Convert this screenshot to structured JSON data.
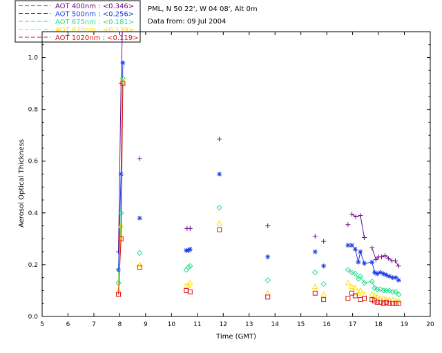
{
  "info": {
    "location": "PML, N 50 22', W 04 08', Alt 0m",
    "date": "Data from: 09 Jul 2004"
  },
  "chart_data": {
    "type": "scatter",
    "xlabel": "Time (GMT)",
    "ylabel": "Aerosol Optical Thickness",
    "xlim": [
      5,
      20
    ],
    "ylim": [
      0,
      1.1
    ],
    "xticks": [
      "5",
      "6",
      "7",
      "8",
      "9",
      "10",
      "11",
      "12",
      "13",
      "14",
      "15",
      "16",
      "17",
      "18",
      "19",
      "20"
    ],
    "yticks": [
      "0.0",
      "0.2",
      "0.4",
      "0.6",
      "0.8",
      "1.0"
    ],
    "legend_position": "top-left-outside",
    "series": [
      {
        "name": "AOT  400nm : <0.346>",
        "color": "#6a0a8a",
        "marker": "plus",
        "points": [
          [
            7.95,
            0.25
          ],
          [
            8.05,
            0.9
          ],
          [
            8.1,
            1.1
          ],
          [
            8.77,
            0.61
          ],
          [
            10.6,
            0.34
          ],
          [
            10.72,
            0.34
          ],
          [
            11.85,
            0.685
          ],
          [
            13.72,
            0.35
          ],
          [
            15.55,
            0.31
          ],
          [
            15.88,
            0.29
          ],
          [
            16.82,
            0.355
          ],
          [
            16.97,
            0.395
          ],
          [
            17.12,
            0.385
          ],
          [
            17.3,
            0.39
          ],
          [
            17.45,
            0.305
          ],
          [
            17.75,
            0.265
          ],
          [
            17.9,
            0.22
          ],
          [
            18.0,
            0.23
          ],
          [
            18.12,
            0.23
          ],
          [
            18.25,
            0.235
          ],
          [
            18.38,
            0.225
          ],
          [
            18.52,
            0.215
          ],
          [
            18.65,
            0.215
          ],
          [
            18.77,
            0.195
          ]
        ],
        "lines": [
          [
            0,
            1
          ],
          [
            1,
            2
          ],
          [
            11,
            12
          ],
          [
            12,
            13
          ],
          [
            13,
            14
          ],
          [
            15,
            16
          ],
          [
            16,
            17
          ],
          [
            17,
            18
          ],
          [
            18,
            19
          ],
          [
            19,
            20
          ],
          [
            20,
            21
          ],
          [
            21,
            22
          ],
          [
            22,
            23
          ]
        ]
      },
      {
        "name": "AOT  500nm : <0.256>",
        "color": "#1a3ce6",
        "marker": "asterisk",
        "points": [
          [
            7.95,
            0.18
          ],
          [
            8.05,
            0.55
          ],
          [
            8.12,
            0.98
          ],
          [
            8.77,
            0.38
          ],
          [
            10.57,
            0.255
          ],
          [
            10.65,
            0.255
          ],
          [
            10.72,
            0.26
          ],
          [
            11.85,
            0.55
          ],
          [
            13.72,
            0.23
          ],
          [
            15.55,
            0.25
          ],
          [
            15.88,
            0.195
          ],
          [
            16.82,
            0.275
          ],
          [
            16.97,
            0.275
          ],
          [
            17.1,
            0.26
          ],
          [
            17.22,
            0.21
          ],
          [
            17.3,
            0.25
          ],
          [
            17.45,
            0.205
          ],
          [
            17.75,
            0.21
          ],
          [
            17.85,
            0.17
          ],
          [
            17.95,
            0.165
          ],
          [
            18.07,
            0.17
          ],
          [
            18.2,
            0.165
          ],
          [
            18.3,
            0.16
          ],
          [
            18.42,
            0.155
          ],
          [
            18.55,
            0.15
          ],
          [
            18.67,
            0.15
          ],
          [
            18.78,
            0.14
          ]
        ],
        "lines": [
          [
            0,
            1
          ],
          [
            1,
            2
          ],
          [
            11,
            12
          ],
          [
            12,
            13
          ],
          [
            13,
            14
          ],
          [
            14,
            15
          ],
          [
            15,
            16
          ],
          [
            16,
            17
          ],
          [
            17,
            18
          ],
          [
            18,
            19
          ],
          [
            19,
            20
          ],
          [
            20,
            21
          ],
          [
            21,
            22
          ],
          [
            22,
            23
          ],
          [
            23,
            24
          ],
          [
            24,
            25
          ],
          [
            25,
            26
          ]
        ]
      },
      {
        "name": "AOT  675nm : <0.181>",
        "color": "#22dd88",
        "marker": "diamond",
        "points": [
          [
            7.95,
            0.13
          ],
          [
            8.05,
            0.4
          ],
          [
            8.12,
            0.92
          ],
          [
            8.77,
            0.245
          ],
          [
            10.57,
            0.18
          ],
          [
            10.65,
            0.19
          ],
          [
            10.72,
            0.195
          ],
          [
            11.85,
            0.42
          ],
          [
            13.72,
            0.14
          ],
          [
            15.55,
            0.17
          ],
          [
            15.88,
            0.125
          ],
          [
            16.82,
            0.18
          ],
          [
            16.97,
            0.17
          ],
          [
            17.1,
            0.165
          ],
          [
            17.22,
            0.145
          ],
          [
            17.3,
            0.155
          ],
          [
            17.45,
            0.13
          ],
          [
            17.75,
            0.135
          ],
          [
            17.85,
            0.11
          ],
          [
            17.95,
            0.105
          ],
          [
            18.07,
            0.105
          ],
          [
            18.2,
            0.1
          ],
          [
            18.3,
            0.1
          ],
          [
            18.42,
            0.1
          ],
          [
            18.55,
            0.095
          ],
          [
            18.67,
            0.095
          ],
          [
            18.78,
            0.085
          ]
        ],
        "lines": [
          [
            0,
            1
          ],
          [
            1,
            2
          ],
          [
            11,
            12
          ],
          [
            12,
            13
          ],
          [
            13,
            14
          ],
          [
            14,
            15
          ],
          [
            15,
            16
          ],
          [
            16,
            17
          ],
          [
            17,
            18
          ],
          [
            18,
            19
          ],
          [
            19,
            20
          ],
          [
            20,
            21
          ],
          [
            21,
            22
          ],
          [
            22,
            23
          ],
          [
            23,
            24
          ],
          [
            24,
            25
          ],
          [
            25,
            26
          ]
        ]
      },
      {
        "name": "AOT  870nm : <0.139>",
        "color": "#ffdd00",
        "marker": "triangle",
        "points": [
          [
            7.95,
            0.1
          ],
          [
            8.05,
            0.35
          ],
          [
            8.12,
            0.91
          ],
          [
            8.77,
            0.2
          ],
          [
            10.57,
            0.12
          ],
          [
            10.65,
            0.12
          ],
          [
            10.72,
            0.13
          ],
          [
            11.85,
            0.36
          ],
          [
            13.72,
            0.09
          ],
          [
            15.55,
            0.115
          ],
          [
            15.88,
            0.085
          ],
          [
            16.82,
            0.13
          ],
          [
            16.97,
            0.115
          ],
          [
            17.1,
            0.11
          ],
          [
            17.22,
            0.09
          ],
          [
            17.3,
            0.1
          ],
          [
            17.45,
            0.085
          ],
          [
            17.75,
            0.085
          ],
          [
            17.85,
            0.08
          ],
          [
            17.95,
            0.075
          ],
          [
            18.07,
            0.07
          ],
          [
            18.2,
            0.07
          ],
          [
            18.3,
            0.065
          ],
          [
            18.42,
            0.065
          ],
          [
            18.55,
            0.065
          ],
          [
            18.67,
            0.06
          ],
          [
            18.78,
            0.06
          ]
        ],
        "lines": [
          [
            0,
            1
          ],
          [
            1,
            2
          ]
        ]
      },
      {
        "name": "AOT 1020nm : <0.119>",
        "color": "#dd1111",
        "marker": "square",
        "points": [
          [
            7.95,
            0.085
          ],
          [
            8.05,
            0.3
          ],
          [
            8.12,
            0.9
          ],
          [
            8.77,
            0.19
          ],
          [
            10.57,
            0.1
          ],
          [
            10.72,
            0.095
          ],
          [
            11.85,
            0.335
          ],
          [
            13.72,
            0.075
          ],
          [
            15.55,
            0.09
          ],
          [
            15.88,
            0.065
          ],
          [
            16.82,
            0.07
          ],
          [
            16.97,
            0.09
          ],
          [
            17.1,
            0.08
          ],
          [
            17.3,
            0.065
          ],
          [
            17.45,
            0.07
          ],
          [
            17.75,
            0.065
          ],
          [
            17.85,
            0.06
          ],
          [
            17.95,
            0.055
          ],
          [
            18.07,
            0.055
          ],
          [
            18.2,
            0.05
          ],
          [
            18.3,
            0.055
          ],
          [
            18.42,
            0.05
          ],
          [
            18.55,
            0.05
          ],
          [
            18.67,
            0.05
          ],
          [
            18.78,
            0.05
          ]
        ],
        "lines": [
          [
            0,
            1
          ],
          [
            1,
            2
          ]
        ]
      }
    ]
  }
}
